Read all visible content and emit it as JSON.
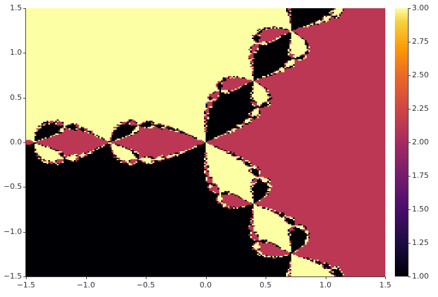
{
  "chart_data": {
    "type": "heatmap",
    "title": "",
    "xlabel": "",
    "ylabel": "",
    "xlim": [
      -1.5,
      1.5
    ],
    "ylim": [
      -1.5,
      1.5
    ],
    "x_ticks": [
      "−1.5",
      "−1.0",
      "−0.5",
      "0.0",
      "0.5",
      "1.0",
      "1.5"
    ],
    "x_tick_values": [
      -1.5,
      -1.0,
      -0.5,
      0.0,
      0.5,
      1.0,
      1.5
    ],
    "y_ticks": [
      "1.5",
      "1.0",
      "0.5",
      "0.0",
      "−0.5",
      "−1.0",
      "−1.5"
    ],
    "y_tick_values": [
      1.5,
      1.0,
      0.5,
      0.0,
      -0.5,
      -1.0,
      -1.5
    ],
    "value_levels": [
      1,
      2,
      3
    ],
    "colormap": "inferno",
    "colorbar": {
      "range": [
        1.0,
        3.0
      ],
      "ticks": [
        "3.00",
        "2.75",
        "2.50",
        "2.25",
        "2.00",
        "1.75",
        "1.50",
        "1.25",
        "1.00"
      ],
      "tick_values": [
        3.0,
        2.75,
        2.5,
        2.25,
        2.0,
        1.75,
        1.5,
        1.25,
        1.0
      ]
    },
    "level_colors": {
      "1": "#000004",
      "2": "#bc3754",
      "3": "#fcffa4"
    },
    "grid": false,
    "legend": "colorbar-right"
  }
}
